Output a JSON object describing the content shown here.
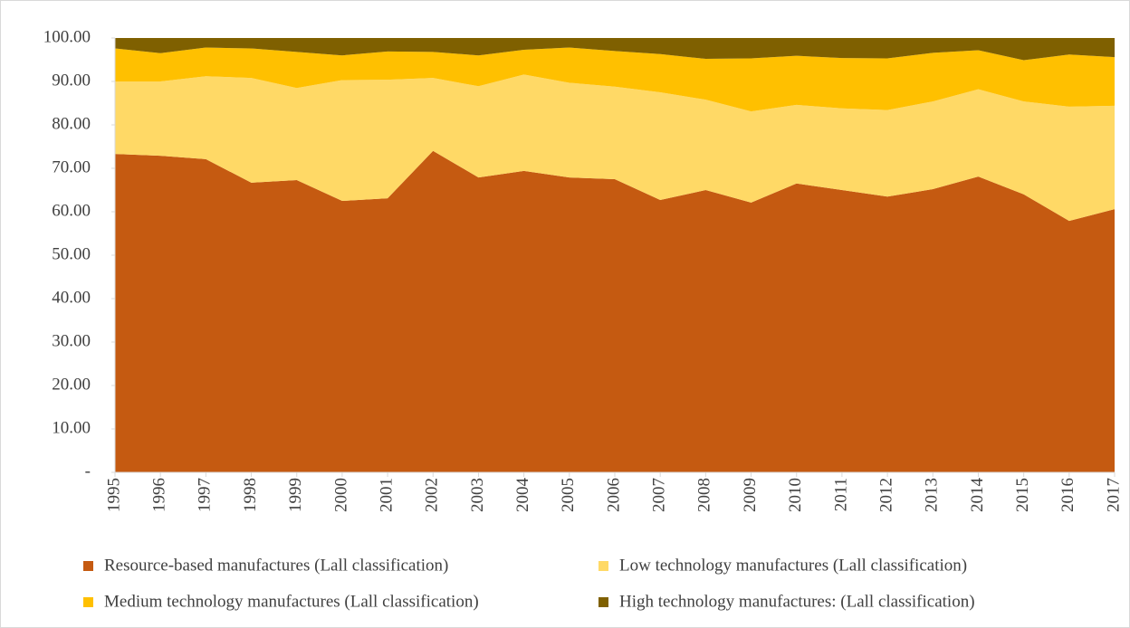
{
  "chart_data": {
    "type": "stacked-area",
    "categories": [
      "1995",
      "1996",
      "1997",
      "1998",
      "1999",
      "2000",
      "2001",
      "2002",
      "2003",
      "2004",
      "2005",
      "2006",
      "2007",
      "2008",
      "2009",
      "2010",
      "2011",
      "2012",
      "2013",
      "2014",
      "2015",
      "2016",
      "2017"
    ],
    "series": [
      {
        "name": "Resource-based manufactures (Lall classification)",
        "color": "#c55a11",
        "values": [
          73.3,
          72.9,
          72.1,
          66.7,
          67.3,
          62.5,
          63.1,
          74.0,
          67.9,
          69.4,
          67.9,
          67.5,
          62.7,
          65.0,
          62.1,
          66.5,
          65.0,
          63.5,
          65.2,
          68.1,
          64.0,
          57.9,
          60.6
        ]
      },
      {
        "name": "Low technology manufactures (Lall classification)",
        "color": "#ffd966",
        "values": [
          16.7,
          17.1,
          19.1,
          24.1,
          21.2,
          27.8,
          27.3,
          16.8,
          21.0,
          22.2,
          21.8,
          21.3,
          24.8,
          20.8,
          21.0,
          18.1,
          18.8,
          19.9,
          20.2,
          20.1,
          21.4,
          26.3,
          23.8
        ]
      },
      {
        "name": "Medium technology manufactures (Lall classification)",
        "color": "#ffc000",
        "values": [
          7.6,
          6.5,
          6.6,
          6.8,
          8.3,
          5.7,
          6.5,
          6.0,
          7.1,
          5.7,
          8.1,
          8.2,
          8.8,
          9.4,
          12.2,
          11.3,
          11.6,
          11.9,
          11.2,
          9.0,
          9.5,
          12.0,
          11.2
        ]
      },
      {
        "name": "High technology manufactures: (Lall classification)",
        "color": "#7f6000",
        "values": [
          2.4,
          3.5,
          2.2,
          2.4,
          3.2,
          4.0,
          3.1,
          3.2,
          4.0,
          2.7,
          2.2,
          3.0,
          3.7,
          4.8,
          4.7,
          4.1,
          4.6,
          4.7,
          3.4,
          2.8,
          5.1,
          3.8,
          4.4
        ]
      }
    ],
    "ylim": [
      0,
      100
    ],
    "yticks": [
      {
        "value": 0,
        "label": "-"
      },
      {
        "value": 10,
        "label": "10.00"
      },
      {
        "value": 20,
        "label": "20.00"
      },
      {
        "value": 30,
        "label": "30.00"
      },
      {
        "value": 40,
        "label": "40.00"
      },
      {
        "value": 50,
        "label": "50.00"
      },
      {
        "value": 60,
        "label": "60.00"
      },
      {
        "value": 70,
        "label": "70.00"
      },
      {
        "value": 80,
        "label": "80.00"
      },
      {
        "value": 90,
        "label": "90.00"
      },
      {
        "value": 100,
        "label": "100.00"
      }
    ],
    "grid": false,
    "legend": "bottom"
  }
}
